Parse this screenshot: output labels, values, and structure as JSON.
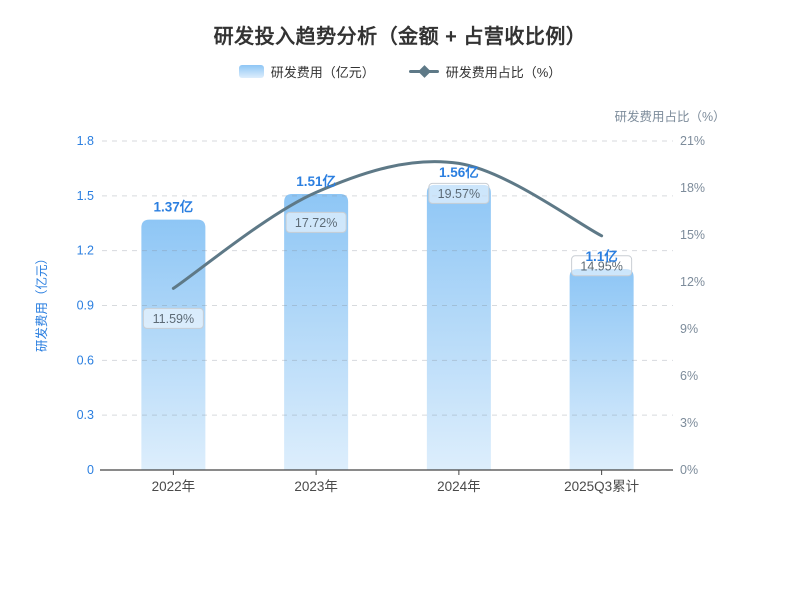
{
  "title": "研发投入趋势分析（金额 + 占营收比例）",
  "legend": {
    "bar": {
      "label": "研发费用（亿元）"
    },
    "line": {
      "label": "研发费用占比（%）"
    }
  },
  "chart_data": {
    "type": "bar-line-combo",
    "categories": [
      "2022年",
      "2023年",
      "2024年",
      "2025Q3累计"
    ],
    "series": [
      {
        "name": "研发费用",
        "type": "bar",
        "axis": "left",
        "unit": "亿元",
        "values": [
          1.37,
          1.51,
          1.56,
          1.1
        ],
        "data_labels": [
          "1.37亿",
          "1.51亿",
          "1.56亿",
          "1.1亿"
        ]
      },
      {
        "name": "研发费用占比",
        "type": "line",
        "axis": "right",
        "unit": "%",
        "smooth": true,
        "values": [
          11.59,
          17.72,
          19.57,
          14.95
        ],
        "data_labels": [
          "11.59%",
          "17.72%",
          "19.57%",
          "14.95%"
        ]
      }
    ],
    "axes": {
      "left": {
        "name": "研发费用（亿元）",
        "min": 0,
        "max": 1.8,
        "tick_step": 0.3,
        "tick_labels": [
          "0",
          "0.3",
          "0.6",
          "0.9",
          "1.2",
          "1.5",
          "1.8"
        ]
      },
      "right": {
        "name": "研发费用占比（%）",
        "min": 0,
        "max": 21,
        "tick_step": 3,
        "tick_labels": [
          "0%",
          "3%",
          "6%",
          "9%",
          "12%",
          "15%",
          "18%",
          "21%"
        ]
      }
    },
    "grid": true,
    "legend_position": "top"
  },
  "colors": {
    "accent_blue": "#2b7fe0",
    "bar_gradient_top": "#8ec6f5",
    "bar_gradient_bottom": "#ddeefc",
    "line": "#5e7987",
    "right_axis_text": "#7d8c9b",
    "x_axis_text": "#4a4a4a",
    "title_text": "#333333",
    "grid_line": "#828c96",
    "axis_line": "#444444",
    "pct_label_text": "#5d6b76",
    "pct_label_border": "#c9ced4",
    "pct_label_bg": "rgba(255,255,255,0.55)"
  }
}
